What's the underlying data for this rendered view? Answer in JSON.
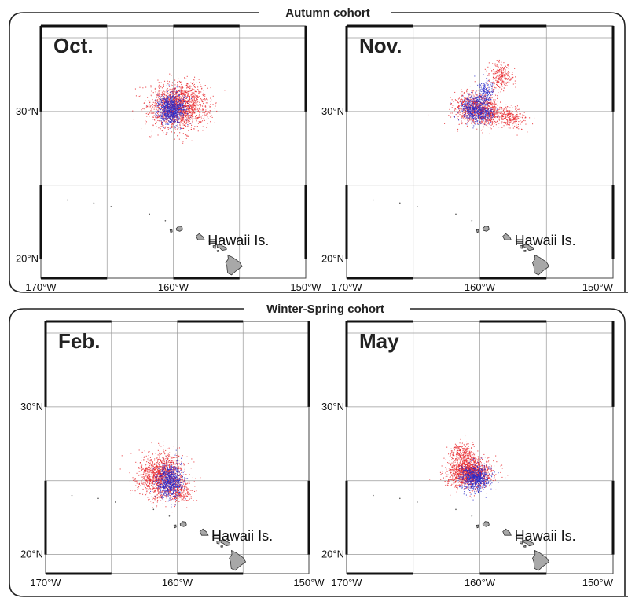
{
  "figure": {
    "cohorts": [
      {
        "title": "Autumn cohort",
        "panels": [
          {
            "month": "Oct.",
            "island_label": "Hawaii Is.",
            "red_clusters": [
              {
                "lon": -159.6,
                "lat": 30.4,
                "slon": 1.1,
                "slat": 0.75,
                "n": 1700
              }
            ],
            "blue_clusters": [
              {
                "lon": -160.2,
                "lat": 30.2,
                "slon": 0.5,
                "slat": 0.5,
                "n": 800
              }
            ]
          },
          {
            "month": "Nov.",
            "island_label": "Hawaii Is.",
            "red_clusters": [
              {
                "lon": -160.4,
                "lat": 30.3,
                "slon": 0.8,
                "slat": 0.55,
                "n": 700
              },
              {
                "lon": -158.5,
                "lat": 32.4,
                "slon": 0.45,
                "slat": 0.45,
                "n": 250
              },
              {
                "lon": -157.7,
                "lat": 29.6,
                "slon": 0.6,
                "slat": 0.35,
                "n": 250
              },
              {
                "lon": -159.4,
                "lat": 29.9,
                "slon": 0.6,
                "slat": 0.45,
                "n": 350
              }
            ],
            "blue_clusters": [
              {
                "lon": -160.5,
                "lat": 30.2,
                "slon": 0.5,
                "slat": 0.5,
                "n": 450
              },
              {
                "lon": -159.6,
                "lat": 31.3,
                "slon": 0.3,
                "slat": 0.45,
                "n": 180
              },
              {
                "lon": -159.6,
                "lat": 29.9,
                "slon": 0.4,
                "slat": 0.3,
                "n": 150
              }
            ]
          }
        ]
      },
      {
        "title": "Winter-Spring cohort",
        "panels": [
          {
            "month": "Feb.",
            "island_label": "Hawaii Is.",
            "red_clusters": [
              {
                "lon": -161.3,
                "lat": 25.4,
                "slon": 0.9,
                "slat": 0.75,
                "n": 1300
              },
              {
                "lon": -159.9,
                "lat": 24.3,
                "slon": 0.5,
                "slat": 0.4,
                "n": 250
              }
            ],
            "blue_clusters": [
              {
                "lon": -160.6,
                "lat": 25.0,
                "slon": 0.45,
                "slat": 0.6,
                "n": 700
              }
            ]
          },
          {
            "month": "May",
            "island_label": "Hawaii Is.",
            "red_clusters": [
              {
                "lon": -160.8,
                "lat": 25.6,
                "slon": 0.8,
                "slat": 0.5,
                "n": 1400
              },
              {
                "lon": -161.4,
                "lat": 26.9,
                "slon": 0.5,
                "slat": 0.35,
                "n": 250
              }
            ],
            "blue_clusters": [
              {
                "lon": -160.4,
                "lat": 25.2,
                "slon": 0.55,
                "slat": 0.45,
                "n": 700
              }
            ]
          }
        ]
      }
    ],
    "lon_ticks": [
      {
        "value": -170,
        "label": "170°W"
      },
      {
        "value": -160,
        "label": "160°W"
      },
      {
        "value": -150,
        "label": "150°W"
      }
    ],
    "lat_ticks": [
      {
        "value": 30,
        "label": "30°N"
      },
      {
        "value": 20,
        "label": "20°N"
      }
    ],
    "map_extent": {
      "lon": [
        -170,
        -150
      ],
      "lat": [
        18.7,
        35.8
      ]
    },
    "colors": {
      "red_points": "#e8282d",
      "blue_points": "#2a2ac8",
      "land": "#a8a8a8",
      "grid": "#9a9a9a"
    }
  }
}
